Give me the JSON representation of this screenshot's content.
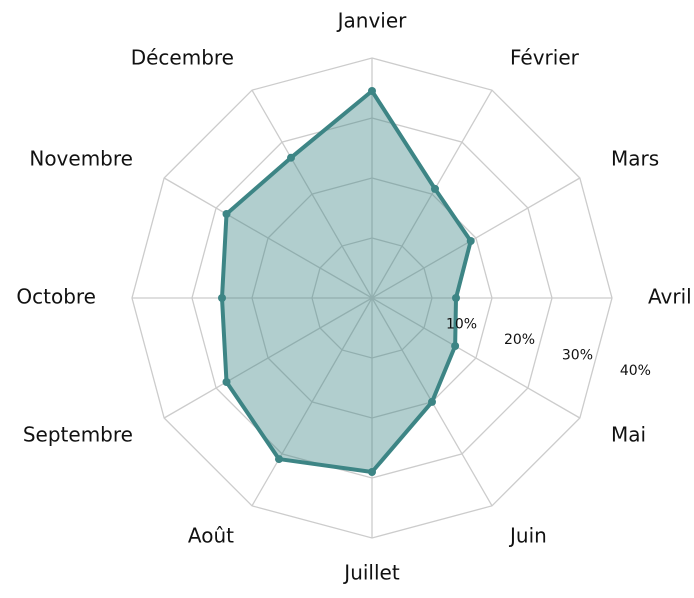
{
  "chart_data": {
    "type": "radar",
    "categories": [
      "Janvier",
      "Février",
      "Mars",
      "Avril",
      "Mai",
      "Juin",
      "Juillet",
      "Août",
      "Septembre",
      "Octobre",
      "Novembre",
      "Décembre"
    ],
    "values": [
      34.5,
      21,
      19,
      14,
      16,
      20,
      29,
      31,
      28,
      25,
      28,
      27
    ],
    "color": "#3d8585",
    "ylim": [
      0,
      40
    ],
    "yticks": [
      {
        "value": 10,
        "label": "10%"
      },
      {
        "value": 20,
        "label": "20%"
      },
      {
        "value": 30,
        "label": "30%"
      },
      {
        "value": 40,
        "label": "40%"
      }
    ],
    "grid": true
  }
}
